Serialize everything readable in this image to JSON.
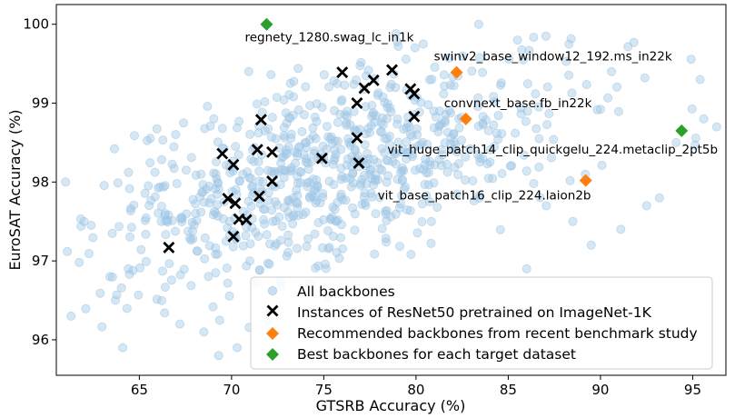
{
  "chart_data": {
    "type": "scatter",
    "title": "",
    "xlabel": "GTSRB Accuracy (%)",
    "ylabel": "EuroSAT Accuracy (%)",
    "xlim": [
      60.5,
      96.8
    ],
    "ylim": [
      95.55,
      100.25
    ],
    "xticks": [
      65,
      70,
      75,
      80,
      85,
      90,
      95
    ],
    "yticks": [
      96,
      97,
      98,
      99,
      100
    ],
    "grid": false,
    "legend_position": "lower-right",
    "colors": {
      "all": "#9ec5e5",
      "resnet": "#000000",
      "recommended": "#ff7f0e",
      "best": "#2ca02c"
    },
    "series": [
      {
        "name": "All backbones",
        "marker": "circle",
        "generated_cloud": {
          "count": 780,
          "x_mean": 75.5,
          "x_sd": 6.3,
          "y_mean": 98.15,
          "y_sd": 0.72,
          "correlation": 0.55,
          "x_range": [
            60.7,
            96.5
          ],
          "y_range": [
            95.6,
            99.9
          ],
          "seed": 7
        },
        "extra_points": [
          [
            61,
            98
          ],
          [
            61.3,
            96.3
          ],
          [
            62,
            97.5
          ],
          [
            63.4,
            96.8
          ],
          [
            63.7,
            96.5
          ],
          [
            64.1,
            95.9
          ],
          [
            64.4,
            96.9
          ],
          [
            66.4,
            97.6
          ],
          [
            67.2,
            96.2
          ],
          [
            68.5,
            96.1
          ],
          [
            69.3,
            95.8
          ],
          [
            70.3,
            95.9
          ],
          [
            86,
            96.9
          ],
          [
            88.5,
            97.5
          ],
          [
            89.5,
            97.2
          ],
          [
            91.1,
            97.4
          ],
          [
            92.5,
            97.7
          ],
          [
            93.2,
            97.8
          ],
          [
            94.1,
            98.5
          ],
          [
            95.6,
            98.8
          ],
          [
            96.3,
            98.7
          ],
          [
            90.6,
            99.4
          ],
          [
            95.4,
            99.3
          ],
          [
            85.5,
            99.8
          ],
          [
            83.4,
            100
          ]
        ]
      },
      {
        "name": "Instances of ResNet50 pretrained on ImageNet-1K",
        "marker": "x",
        "points": [
          [
            66.6,
            97.17
          ],
          [
            69.5,
            98.36
          ],
          [
            70.1,
            98.22
          ],
          [
            71.6,
            98.79
          ],
          [
            71.4,
            98.41
          ],
          [
            72.2,
            98.38
          ],
          [
            72.2,
            98.01
          ],
          [
            71.5,
            97.82
          ],
          [
            69.8,
            97.79
          ],
          [
            70.2,
            97.73
          ],
          [
            70.4,
            97.53
          ],
          [
            70.8,
            97.52
          ],
          [
            70.1,
            97.31
          ],
          [
            74.9,
            98.3
          ],
          [
            76.0,
            99.39
          ],
          [
            77.7,
            99.29
          ],
          [
            77.2,
            99.19
          ],
          [
            78.7,
            99.42
          ],
          [
            76.8,
            99.0
          ],
          [
            76.8,
            98.56
          ],
          [
            76.9,
            98.24
          ],
          [
            79.7,
            99.18
          ],
          [
            79.9,
            99.12
          ],
          [
            79.9,
            98.83
          ]
        ]
      },
      {
        "name": "Recommended backbones from recent benchmark study",
        "marker": "diamond",
        "points": [
          {
            "x": 82.2,
            "y": 99.39,
            "label": "swinv2_base_window12_192.ms_in22k"
          },
          {
            "x": 82.7,
            "y": 98.8,
            "label": "convnext_base.fb_in22k"
          },
          {
            "x": 89.2,
            "y": 98.02,
            "label": "vit_base_patch16_clip_224.laion2b"
          }
        ]
      },
      {
        "name": "Best backbones for each target dataset",
        "marker": "diamond",
        "points": [
          {
            "x": 71.9,
            "y": 100.0,
            "label": "regnety_1280.swag_lc_in1k"
          },
          {
            "x": 94.4,
            "y": 98.65,
            "label": "vit_huge_patch14_clip_quickgelu_224.metaclip_2pt5b"
          }
        ]
      }
    ]
  }
}
